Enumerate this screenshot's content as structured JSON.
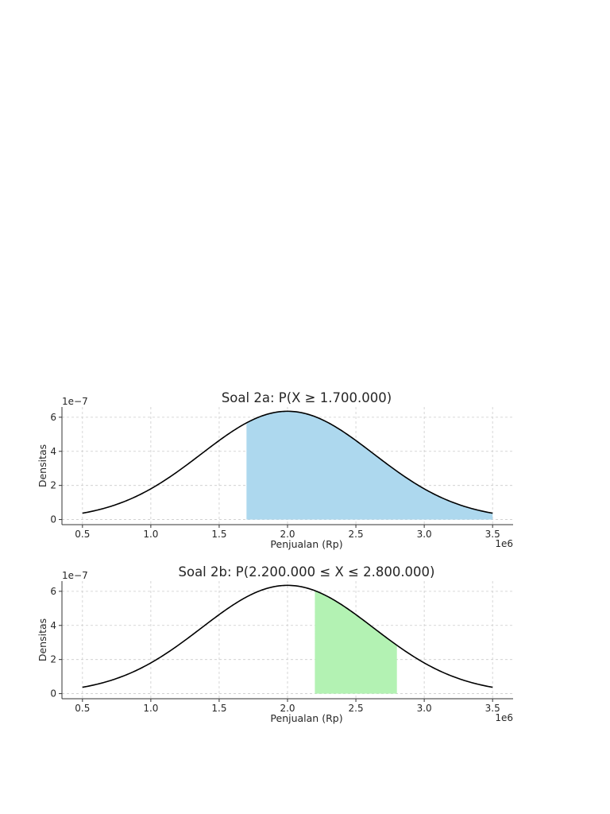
{
  "chart_data": [
    {
      "type": "area",
      "title": "Soal 2a: P(X ≥ 1.700.000)",
      "xlabel": "Penjualan (Rp)",
      "ylabel": "Densitas",
      "x_offset_label": "1e6",
      "y_offset_label": "1e−7",
      "xlim": [
        0.35,
        3.65
      ],
      "ylim": [
        -0.3,
        6.6
      ],
      "xticks": [
        0.5,
        1.0,
        1.5,
        2.0,
        2.5,
        3.0,
        3.5
      ],
      "xtick_labels": [
        "0.5",
        "1.0",
        "1.5",
        "2.0",
        "2.5",
        "3.0",
        "3.5"
      ],
      "yticks": [
        0,
        2,
        4,
        6
      ],
      "ytick_labels": [
        "0",
        "2",
        "4",
        "6"
      ],
      "grid": true,
      "curve": {
        "x": [
          0.5,
          0.75,
          1.0,
          1.25,
          1.5,
          1.7,
          1.75,
          2.0,
          2.25,
          2.5,
          2.75,
          3.0,
          3.25,
          3.5
        ],
        "y": [
          0.35,
          0.85,
          1.75,
          3.0,
          4.55,
          5.57,
          5.8,
          6.35,
          5.8,
          4.55,
          3.0,
          1.75,
          0.85,
          0.35
        ]
      },
      "shaded_range": [
        1.7,
        3.5
      ],
      "shade_color": "#add8ee",
      "line_color": "#000000"
    },
    {
      "type": "area",
      "title": "Soal 2b: P(2.200.000 ≤ X ≤ 2.800.000)",
      "xlabel": "Penjualan (Rp)",
      "ylabel": "Densitas",
      "x_offset_label": "1e6",
      "y_offset_label": "1e−7",
      "xlim": [
        0.35,
        3.65
      ],
      "ylim": [
        -0.3,
        6.6
      ],
      "xticks": [
        0.5,
        1.0,
        1.5,
        2.0,
        2.5,
        3.0,
        3.5
      ],
      "xtick_labels": [
        "0.5",
        "1.0",
        "1.5",
        "2.0",
        "2.5",
        "3.0",
        "3.5"
      ],
      "yticks": [
        0,
        2,
        4,
        6
      ],
      "ytick_labels": [
        "0",
        "2",
        "4",
        "6"
      ],
      "grid": true,
      "curve": {
        "x": [
          0.5,
          0.75,
          1.0,
          1.25,
          1.5,
          1.75,
          2.0,
          2.2,
          2.25,
          2.5,
          2.75,
          2.8,
          3.0,
          3.25,
          3.5
        ],
        "y": [
          0.35,
          0.85,
          1.75,
          3.0,
          4.55,
          5.8,
          6.35,
          5.97,
          5.8,
          4.55,
          3.0,
          2.7,
          1.75,
          0.85,
          0.35
        ]
      },
      "shaded_range": [
        2.2,
        2.8
      ],
      "shade_color": "#b3f2b3",
      "line_color": "#000000"
    }
  ]
}
